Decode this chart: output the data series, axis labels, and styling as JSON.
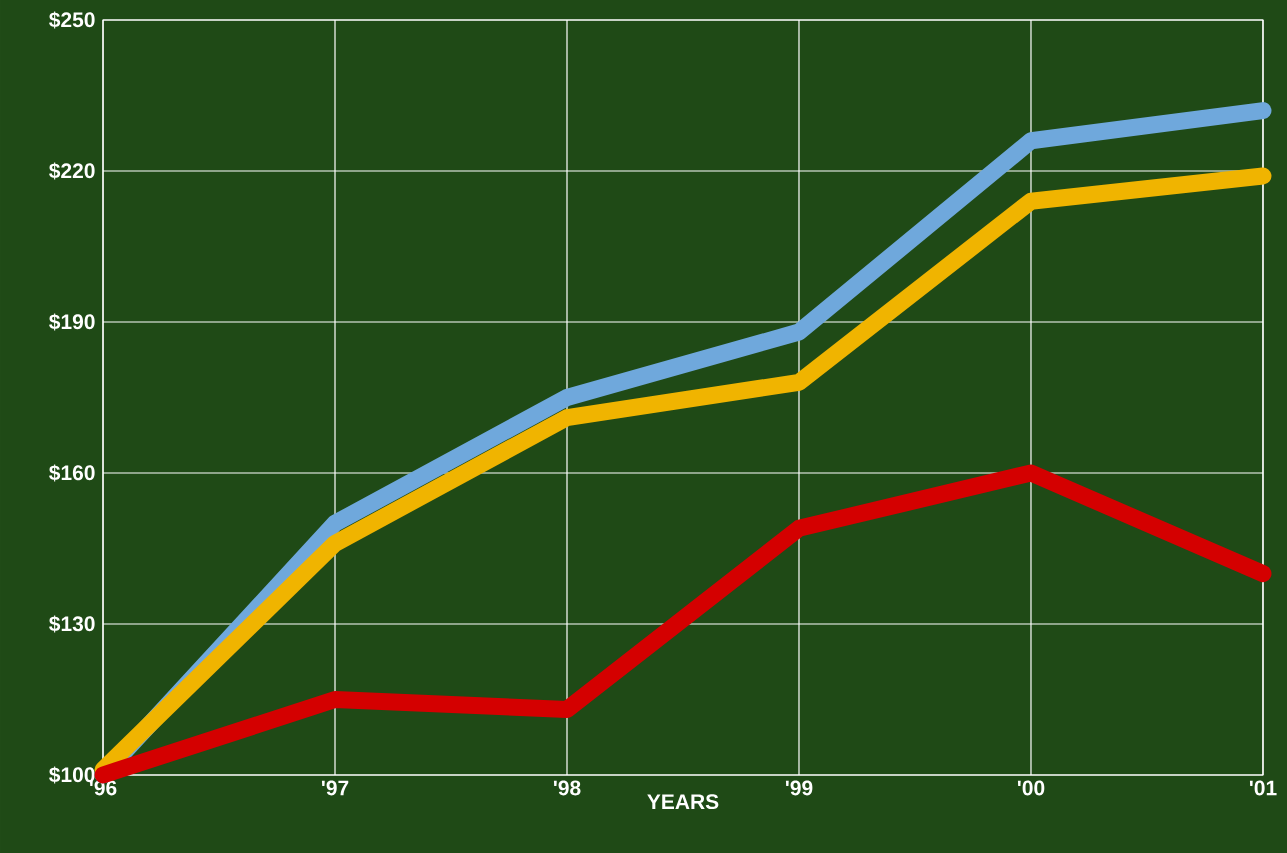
{
  "chart_data": {
    "type": "line",
    "xlabel": "YEARS",
    "categories": [
      "'96",
      "'97",
      "'98",
      "'99",
      "'00",
      "'01"
    ],
    "series": [
      {
        "color": "#6fa8dc",
        "values": [
          100,
          150,
          175,
          188,
          226,
          232
        ]
      },
      {
        "color": "#f0b400",
        "values": [
          101,
          146,
          171,
          178,
          214,
          219
        ]
      },
      {
        "color": "#d40000",
        "values": [
          100,
          115,
          113,
          149,
          160,
          140
        ]
      }
    ],
    "ylim": [
      100,
      250
    ],
    "yticks": [
      {
        "value": 100,
        "label": "$100"
      },
      {
        "value": 130,
        "label": "$130"
      },
      {
        "value": 160,
        "label": "$160"
      },
      {
        "value": 190,
        "label": "$190"
      },
      {
        "value": 220,
        "label": "$220"
      },
      {
        "value": 250,
        "label": "$250"
      }
    ],
    "grid": true
  }
}
